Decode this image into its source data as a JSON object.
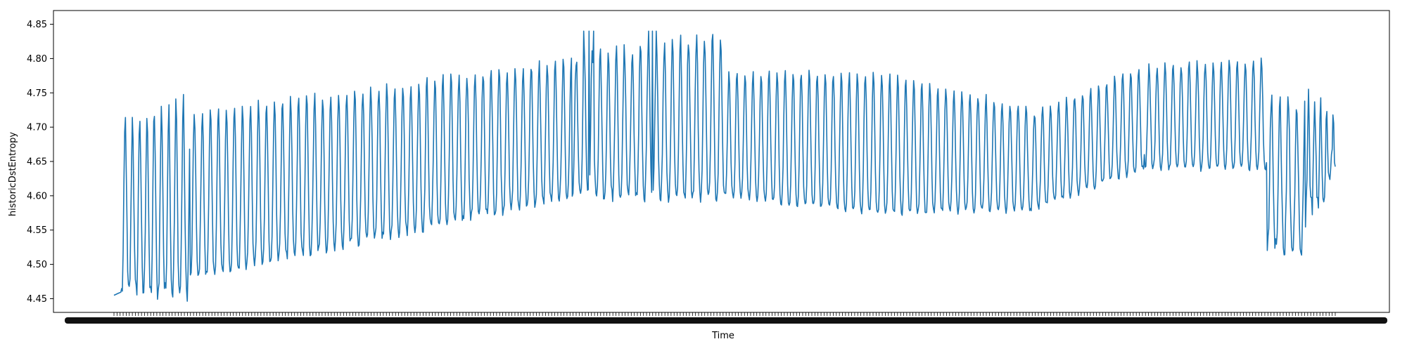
{
  "chart_data": {
    "type": "line",
    "title": "",
    "xlabel": "Time",
    "ylabel": "historicDstEntropy",
    "ylim": [
      4.43,
      4.87
    ],
    "yticks": [
      "4.45",
      "4.50",
      "4.55",
      "4.60",
      "4.65",
      "4.70",
      "4.75",
      "4.80",
      "4.85"
    ],
    "grid": false,
    "legend": "none",
    "x_tick_labels_note": "dense overlapping date labels, unreadable",
    "n_points": 1600,
    "color": "#1f77b4",
    "segments": [
      {
        "start": 0,
        "end": 10,
        "startValue": 4.455,
        "endValue": 4.46
      },
      {
        "start": 10,
        "end": 100,
        "low": [
          4.46,
          4.46
        ],
        "high": [
          4.71,
          4.74
        ],
        "period": 9.5,
        "noise": 0.03
      },
      {
        "start": 100,
        "end": 600,
        "low": [
          4.48,
          4.6
        ],
        "high": [
          4.72,
          4.8
        ],
        "period": 10.5,
        "noise": 0.015
      },
      {
        "start": 600,
        "end": 800,
        "low": [
          4.6,
          4.6
        ],
        "high": [
          4.8,
          4.84
        ],
        "period": 10.5,
        "noise": 0.02
      },
      {
        "start": 800,
        "end": 1000,
        "low": [
          4.6,
          4.575
        ],
        "high": [
          4.78,
          4.78
        ],
        "period": 10.5,
        "noise": 0.01
      },
      {
        "start": 1000,
        "end": 1200,
        "low": [
          4.575,
          4.58
        ],
        "high": [
          4.78,
          4.73
        ],
        "period": 10.5,
        "noise": 0.01
      },
      {
        "start": 1200,
        "end": 1350,
        "low": [
          4.58,
          4.64
        ],
        "high": [
          4.72,
          4.79
        ],
        "period": 10.5,
        "noise": 0.01
      },
      {
        "start": 1350,
        "end": 1510,
        "low": [
          4.64,
          4.64
        ],
        "high": [
          4.79,
          4.8
        ],
        "period": 10.5,
        "noise": 0.01
      },
      {
        "start": 1510,
        "end": 1560,
        "low": [
          4.53,
          4.52
        ],
        "high": [
          4.74,
          4.74
        ],
        "period": 11,
        "noise": 0.03
      },
      {
        "start": 1560,
        "end": 1600,
        "low": [
          4.57,
          4.63
        ],
        "high": [
          4.75,
          4.7
        ],
        "period": 8,
        "noise": 0.04
      }
    ]
  }
}
